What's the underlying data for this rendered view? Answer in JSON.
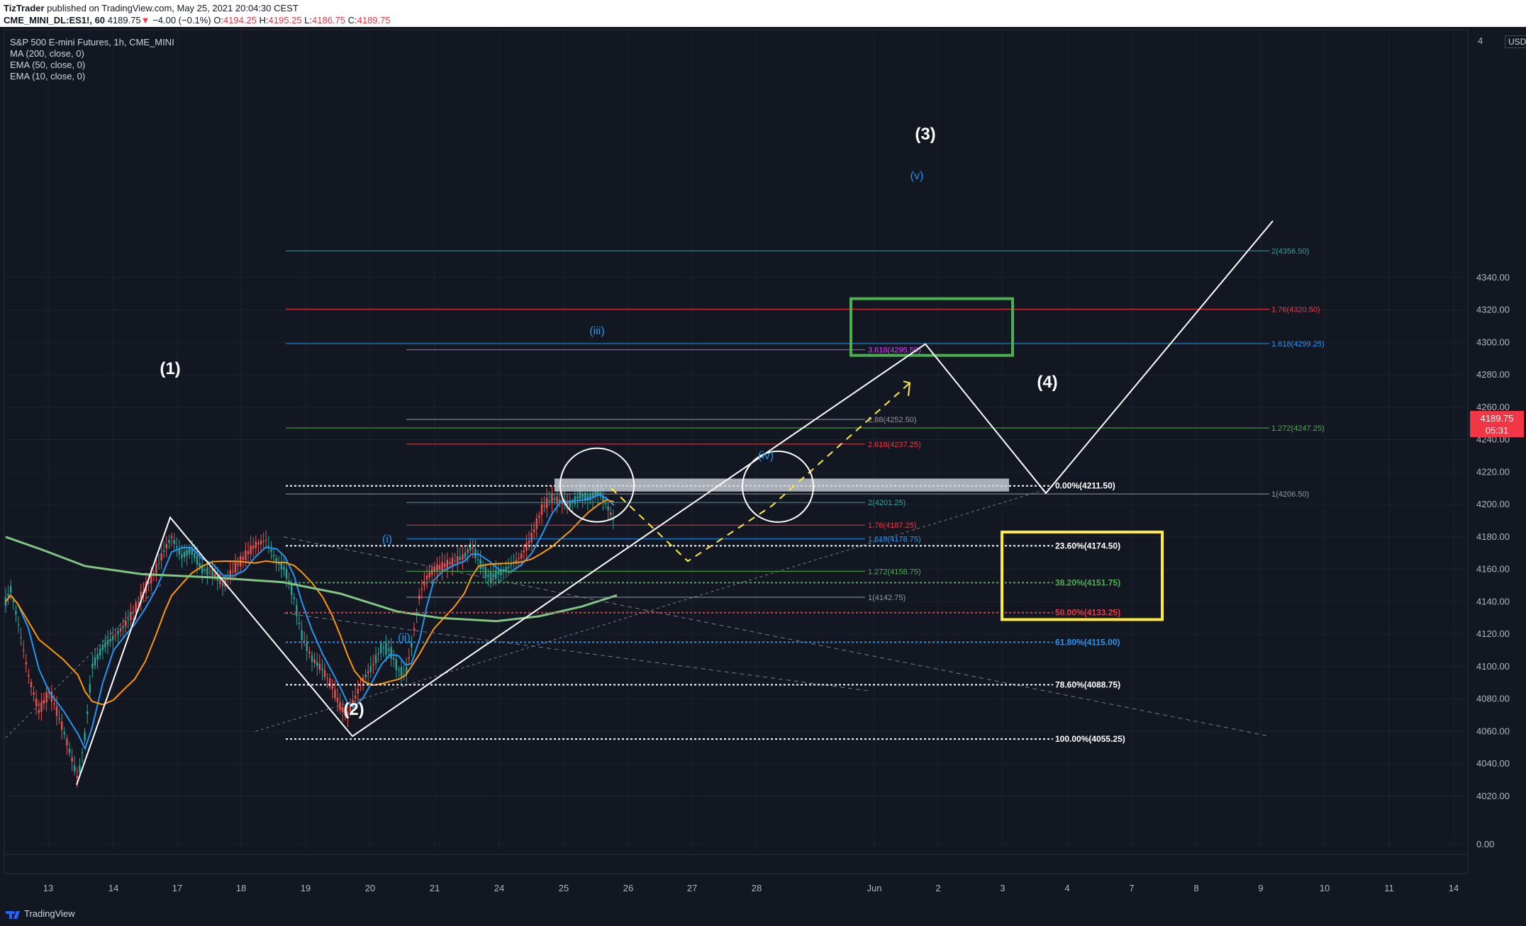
{
  "header": {
    "publisher": "TizTrader",
    "published_line": " published on TradingView.com, May 25, 2021 20:04:30 CEST",
    "symbol": "CME_MINI_DL:ES1!, 60",
    "last": "4189.75",
    "change_arrow": "▼",
    "change": "−4.00 (−0.1%)",
    "o_label": "O:",
    "o": "4194.25",
    "h_label": "H:",
    "h": "4195.25",
    "l_label": "L:",
    "l": "4186.75",
    "c_label": "C:",
    "c": "4189.75"
  },
  "legend": {
    "title": "S&P 500 E-mini Futures, 1h, CME_MINI",
    "ma": "MA (200, close, 0)",
    "ema50": "EMA (50, close, 0)",
    "ema10": "EMA (10, close, 0)"
  },
  "price_axis": {
    "currency": "USD",
    "current_price": "4189.75",
    "countdown": "05:31",
    "ticks": [
      "4340.00",
      "4320.00",
      "4300.00",
      "4280.00",
      "4260.00",
      "4240.00",
      "4220.00",
      "4200.00",
      "4180.00",
      "4160.00",
      "4140.00",
      "4120.00",
      "4100.00",
      "4080.00",
      "4060.00",
      "4040.00",
      "4020.00",
      "0.00"
    ],
    "top_tick_partial": "4"
  },
  "time_axis": {
    "labels": [
      "13",
      "14",
      "17",
      "18",
      "19",
      "20",
      "21",
      "24",
      "25",
      "26",
      "27",
      "28",
      "Jun",
      "2",
      "3",
      "4",
      "7",
      "8",
      "9",
      "10",
      "11",
      "14"
    ]
  },
  "footer": {
    "brand": "TradingView"
  },
  "colors": {
    "background": "#131722",
    "up": "#26a69a",
    "down": "#ef5350",
    "ma200": "#81c784",
    "ema50": "#ff9800",
    "ema10": "#2196f3",
    "projection": "#ffffff",
    "target_box": "#4caf50",
    "support_box": "#ffeb3b",
    "fib_white": "#ffffff",
    "fib_green": "#4caf50",
    "fib_red": "#f23645",
    "fib_blue": "#2196f3"
  },
  "chart_data": {
    "type": "candlestick",
    "symbol": "S&P 500 E-mini Futures, 1h, CME_MINI",
    "ylim": [
      4000,
      4370
    ],
    "wave_labels": [
      {
        "text": "(1)",
        "price": 4192
      },
      {
        "text": "(2)",
        "price": 4057
      },
      {
        "text": "(3)",
        "price": 4299
      },
      {
        "text": "(4)",
        "price": 4207
      },
      {
        "text": "(i)",
        "price": 4116
      },
      {
        "text": "(ii)",
        "price": 4086
      },
      {
        "text": "(iii)",
        "price": 4209
      },
      {
        "text": "(iv)",
        "price": 4165
      },
      {
        "text": "(v)",
        "price": 4290
      }
    ],
    "fib_retracement": [
      {
        "label": "0.00%(4211.50)",
        "price": 4211.5,
        "color": "white"
      },
      {
        "label": "23.60%(4174.50)",
        "price": 4174.5,
        "color": "white"
      },
      {
        "label": "38.20%(4151.75)",
        "price": 4151.75,
        "color": "green"
      },
      {
        "label": "50.00%(4133.25)",
        "price": 4133.25,
        "color": "red"
      },
      {
        "label": "61.80%(4115.00)",
        "price": 4115.0,
        "color": "blue"
      },
      {
        "label": "78.60%(4088.75)",
        "price": 4088.75,
        "color": "white"
      },
      {
        "label": "100.00%(4055.25)",
        "price": 4055.25,
        "color": "white"
      }
    ],
    "fib_extension_wave3": [
      {
        "label": "2(4356.50)",
        "price": 4356.5,
        "color": "teal"
      },
      {
        "label": "1.76(4320.50)",
        "price": 4320.5,
        "color": "red"
      },
      {
        "label": "1.618(4299.25)",
        "price": 4299.25,
        "color": "blue"
      },
      {
        "label": "1.272(4247.25)",
        "price": 4247.25,
        "color": "green"
      },
      {
        "label": "1(4206.50)",
        "price": 4206.5,
        "color": "gray"
      }
    ],
    "fib_extension_subwaves": [
      {
        "label": "3.618(4295.50)",
        "price": 4295.5,
        "color": "magenta"
      },
      {
        "label": "2.88(4252.50)",
        "price": 4252.5,
        "color": "gray"
      },
      {
        "label": "2.618(4237.25)",
        "price": 4237.25,
        "color": "red"
      },
      {
        "label": "2(4201.25)",
        "price": 4201.25,
        "color": "teal"
      },
      {
        "label": "1.76(4187.25)",
        "price": 4187.25,
        "color": "red"
      },
      {
        "label": "1.618(4178.75)",
        "price": 4178.75,
        "color": "blue"
      },
      {
        "label": "1.272(4158.75)",
        "price": 4158.75,
        "color": "green"
      },
      {
        "label": "1(4142.75)",
        "price": 4142.75,
        "color": "gray"
      }
    ],
    "zones": [
      {
        "name": "resistance",
        "from": 4208,
        "to": 4216
      },
      {
        "name": "wave3-target",
        "from": 4292,
        "to": 4327
      },
      {
        "name": "wave4-support",
        "from": 4129,
        "to": 4183
      }
    ]
  }
}
